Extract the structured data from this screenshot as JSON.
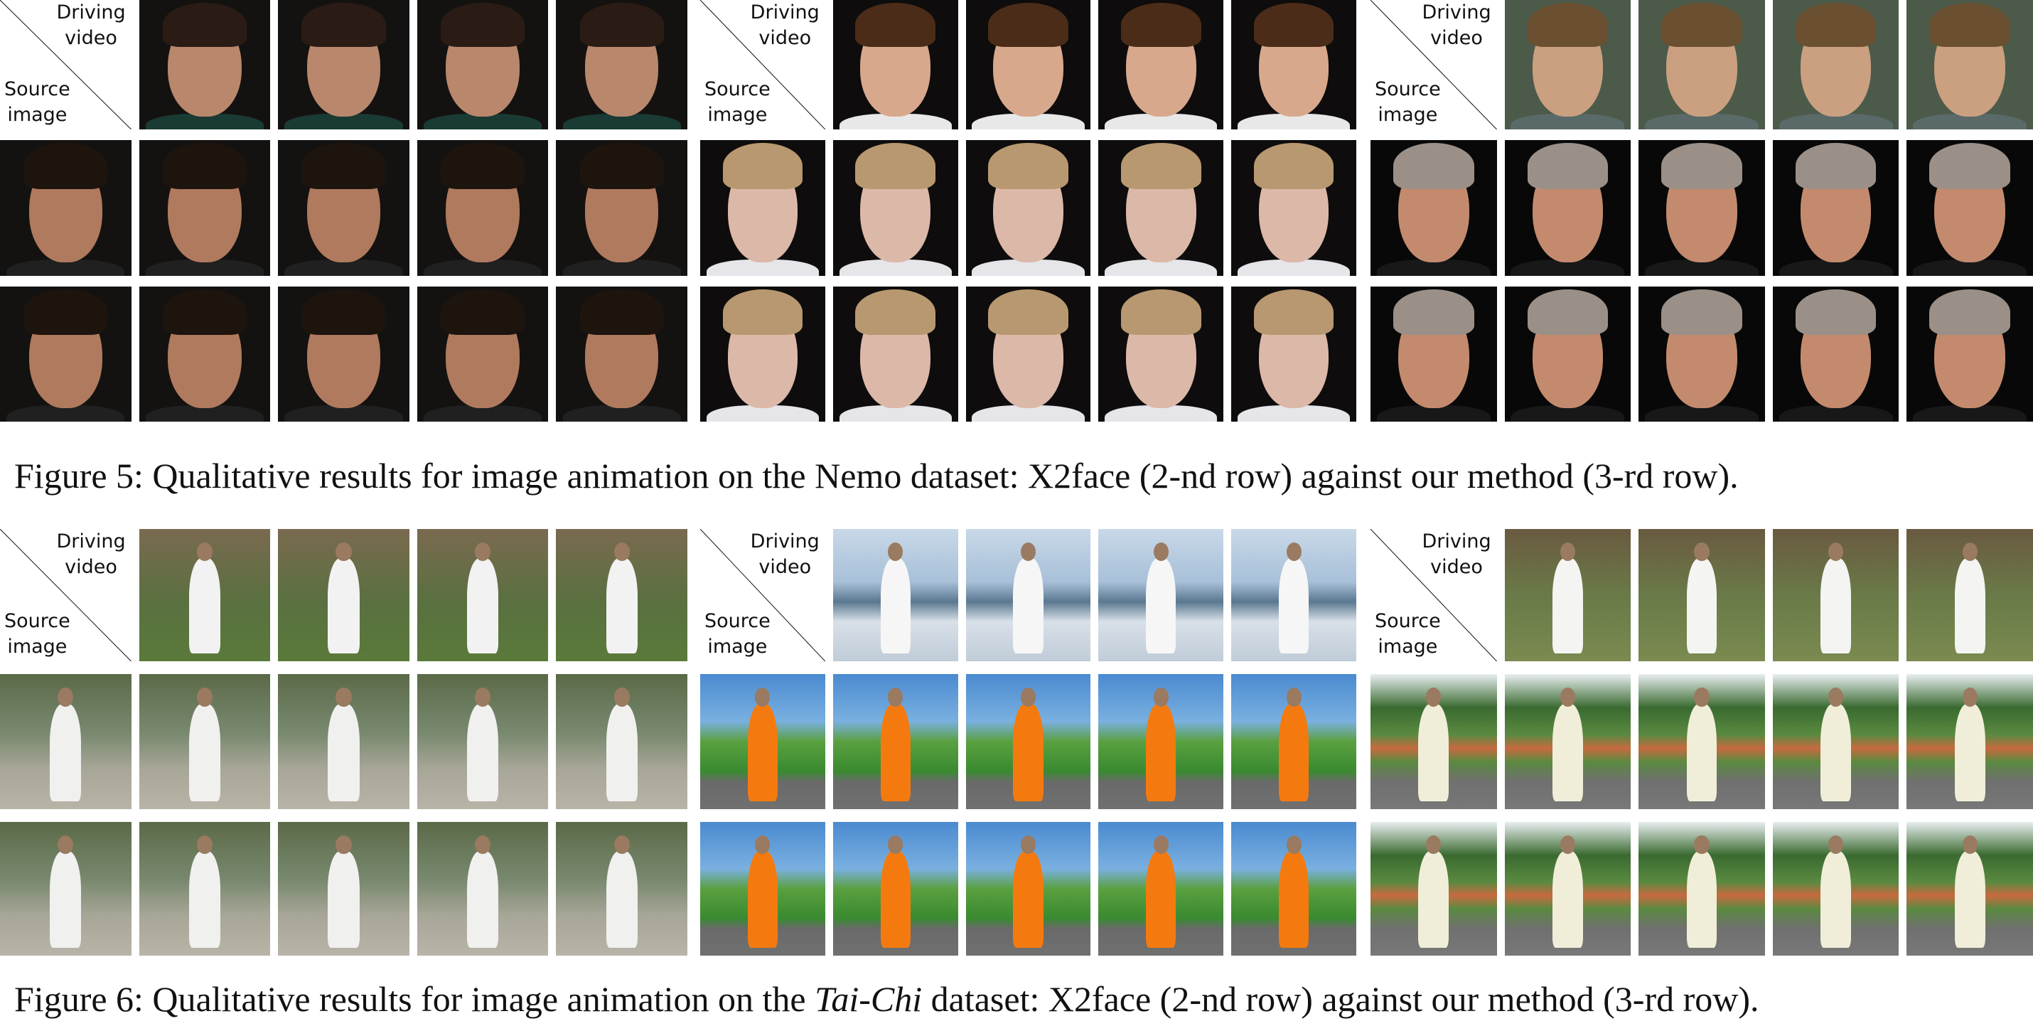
{
  "labels": {
    "driving": "Driving video",
    "driving_l1": "Driving",
    "driving_l2": "video",
    "source_l1": "Source",
    "source_l2": "image"
  },
  "figure5": {
    "caption": "Figure 5: Qualitative results for image animation on the Nemo dataset: X2face (2-nd row) against our method (3-rd row).",
    "panels": [
      {
        "bg": "#141210",
        "skin": "#b8876c",
        "hair": "#2a1c14",
        "cloth": "#1a3a34",
        "src_skin": "#b07a5e",
        "src_hair": "#1e140e",
        "src_cloth": "#202020"
      },
      {
        "bg": "#0e0c0c",
        "skin": "#d8a88c",
        "hair": "#4a2c18",
        "cloth": "#e8e8e8",
        "src_skin": "#dcb8a8",
        "src_hair": "#b89870",
        "src_cloth": "#e6e6ea"
      },
      {
        "bg": "#4c5a4a",
        "skin": "#caa080",
        "hair": "#6a5030",
        "cloth": "#5a6a68",
        "src_skin": "#c48a6e",
        "src_hair": "#9a9088",
        "src_cloth": "#181818",
        "src_bg": "#080808"
      }
    ]
  },
  "figure6": {
    "caption_prefix": "Figure 6: Qualitative results for image animation on the ",
    "caption_dataset": "Tai-Chi",
    "caption_suffix": " dataset: X2face (2-nd row) against our method (3-rd row).",
    "panels": [
      {
        "drv_bg": "linear-gradient(#7a6a50 0%,#5a7040 55%,#5a7a3a 100%)",
        "drv_fig": "#f2f2f2",
        "src_bg": "linear-gradient(#5a6a48 0%,#7a8a70 45%,#a8a698 70%,#b8b4a8 100%)",
        "src_fig": "#f0f0ee"
      },
      {
        "drv_bg": "linear-gradient(#c8d8e8 0%,#a8c0d8 40%,#5a7890 55%,#d8e0e8 70%,#c0ccd8 100%)",
        "drv_fig": "#f6f6f6",
        "src_bg": "linear-gradient(#4a8ad0 0%,#7ab0e0 35%,#5aa040 50%,#3a8a30 72%,#6a6a6a 80%,#707070 100%)",
        "src_fig": "#f47a10"
      },
      {
        "drv_bg": "linear-gradient(#6a5a40 0%,#6a7a48 50%,#7a8a50 100%)",
        "drv_fig": "#f4f4f2",
        "src_bg": "linear-gradient(#e8eef0 0%,#3a6a30 25%,#5a8a40 45%,#c86a40 55%,#5a8a40 65%,#707070 80%,#787878 100%)",
        "src_fig": "#f0eed8"
      }
    ]
  }
}
